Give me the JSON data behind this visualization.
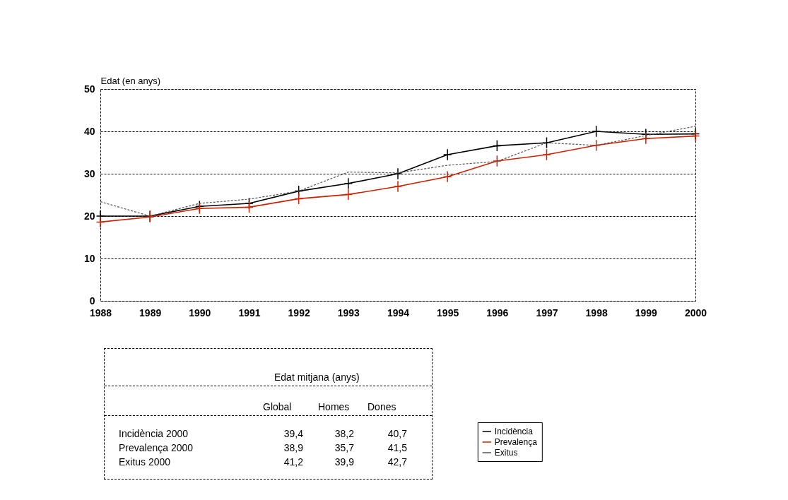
{
  "chart_data": {
    "type": "line",
    "ylabel": "Edat (en anys)",
    "categories": [
      "1988",
      "1989",
      "1990",
      "1991",
      "1992",
      "1993",
      "1994",
      "1995",
      "1996",
      "1997",
      "1998",
      "1999",
      "2000"
    ],
    "series": [
      {
        "name": "Incidència",
        "color": "#000000",
        "marker": "cross",
        "line_style": "solid",
        "values": [
          20,
          20,
          22.3,
          23,
          25.9,
          27.7,
          30,
          34.5,
          36.6,
          37.3,
          40,
          39.3,
          39.4
        ]
      },
      {
        "name": "Prevalença",
        "color": "#cc2200",
        "marker": "cross",
        "line_style": "solid",
        "values": [
          18.6,
          19.8,
          21.8,
          22.1,
          24.1,
          25.1,
          27,
          29.3,
          33,
          34.5,
          36.7,
          38.3,
          38.9
        ]
      },
      {
        "name": "Exitus",
        "color": "#555555",
        "marker": "none",
        "line_style": "dashed",
        "values": [
          23.4,
          20,
          23,
          24,
          25.9,
          30.4,
          30.2,
          32,
          32.9,
          37.3,
          36.7,
          39,
          41.2
        ]
      }
    ],
    "ylim": [
      0,
      50
    ],
    "yticks": [
      0,
      10,
      20,
      30,
      40,
      50
    ],
    "grid": "y",
    "legend": "bottom right",
    "annotations": [
      "Edat mitjana (anys)",
      "Global",
      "Homes",
      "Dones",
      "Incidència 2000",
      "39,4",
      "38,2",
      "40,7",
      "Prevalença 2000",
      "38,9",
      "35,7",
      "41,5",
      "Exitus 2000",
      "41,2",
      "39,9",
      "42,7"
    ]
  }
}
